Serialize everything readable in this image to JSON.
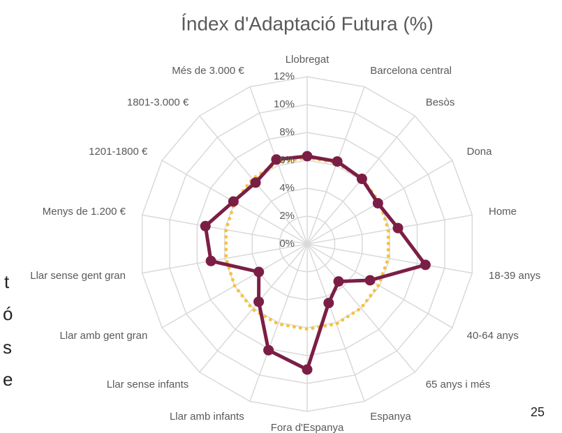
{
  "chart_data": {
    "type": "radar",
    "title": "Índex d'Adaptació Futura (%)",
    "categories": [
      "Llobregat",
      "Barcelona central",
      "Besòs",
      "Dona",
      "Home",
      "18-39 anys",
      "40-64 anys",
      "65 anys i més",
      "Espanya",
      "Fora d'Espanya",
      "Llar amb infants",
      "Llar sense infants",
      "Llar amb gent gran",
      "Llar sense gent gran",
      "Menys de 1.200 €",
      "1201-1800 €",
      "1801-3.000 €",
      "Més de 3.000 €"
    ],
    "series": [
      {
        "color": "#f5c342",
        "style": "dotted",
        "values": [
          6.2,
          6.2,
          6.1,
          6.0,
          5.9,
          5.9,
          5.9,
          6.0,
          6.1,
          6.1,
          6.1,
          6.1,
          6.0,
          5.9,
          5.9,
          6.0,
          6.1,
          6.2
        ]
      },
      {
        "color": "#7b1e45",
        "style": "solid",
        "values": [
          6.3,
          6.3,
          6.1,
          5.85,
          6.6,
          8.6,
          5.2,
          3.5,
          4.5,
          9.0,
          8.1,
          5.4,
          4.0,
          7.0,
          7.4,
          6.1,
          5.75,
          6.45
        ]
      }
    ],
    "ylim": [
      0,
      12
    ],
    "yticks": [
      {
        "value": 0,
        "label": "0%"
      },
      {
        "value": 2,
        "label": "2%"
      },
      {
        "value": 4,
        "label": "4%"
      },
      {
        "value": 6,
        "label": "6%"
      },
      {
        "value": 8,
        "label": "8%"
      },
      {
        "value": 10,
        "label": "10%"
      },
      {
        "value": 12,
        "label": "12%"
      }
    ],
    "grid": true
  },
  "slide": {
    "page_number": "25",
    "side_text": [
      "t",
      "ó",
      "s",
      "e"
    ]
  }
}
